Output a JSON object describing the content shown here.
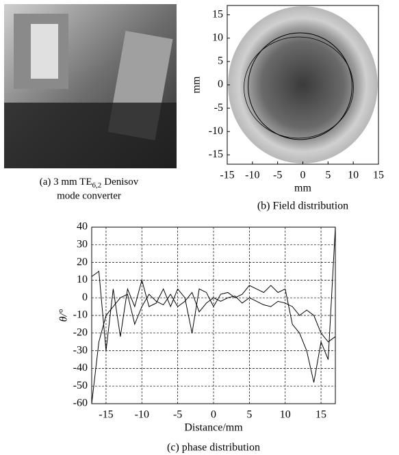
{
  "figure": {
    "caption_a": {
      "prefix": "(a) 3 mm TE",
      "subscript": "6,2",
      "suffix": "Denisov",
      "line2": "mode converter"
    }
  },
  "chart_data": [
    {
      "type": "field",
      "caption": "(b) Field distribution",
      "xlabel": "mm",
      "ylabel": "mm",
      "xlim": [
        -15,
        15
      ],
      "ylim": [
        -17,
        17
      ],
      "xticks": [
        -15,
        -10,
        -5,
        0,
        5,
        10,
        15
      ],
      "yticks": [
        -15,
        -10,
        -5,
        0,
        5,
        10,
        15
      ]
    },
    {
      "type": "line",
      "caption": "(c) phase distribution",
      "xlabel": "Distance/mm",
      "ylabel": "θ/°",
      "xlim": [
        -17,
        17
      ],
      "ylim": [
        -60,
        40
      ],
      "xticks": [
        -15,
        -10,
        -5,
        0,
        5,
        10,
        15
      ],
      "yticks": [
        -60,
        -50,
        -40,
        -30,
        -20,
        -10,
        0,
        10,
        20,
        30,
        40
      ],
      "grid": true,
      "x": [
        -17,
        -16,
        -15,
        -14,
        -13,
        -12,
        -11,
        -10,
        -9,
        -8,
        -7,
        -6,
        -5,
        -4,
        -3,
        -2,
        -1,
        0,
        1,
        2,
        3,
        4,
        5,
        6,
        7,
        8,
        9,
        10,
        11,
        12,
        13,
        14,
        15,
        16,
        17
      ],
      "series": [
        {
          "color": "#000000",
          "values": [
            12,
            15,
            -30,
            5,
            -22,
            5,
            -5,
            10,
            -5,
            -3,
            5,
            -5,
            5,
            0,
            -20,
            5,
            3,
            -5,
            2,
            3,
            0,
            2,
            7,
            5,
            3,
            7,
            3,
            5,
            -15,
            -20,
            -30,
            -48,
            -25,
            -35,
            40
          ]
        },
        {
          "color": "#000000",
          "values": [
            -60,
            -25,
            -10,
            -5,
            0,
            2,
            -15,
            -5,
            2,
            -2,
            -4,
            2,
            -5,
            -2,
            3,
            -8,
            -3,
            0,
            -2,
            0,
            1,
            -3,
            0,
            -2,
            -4,
            -5,
            -2,
            -3,
            -5,
            -10,
            -7,
            -10,
            -20,
            -25,
            -22
          ]
        }
      ]
    }
  ]
}
